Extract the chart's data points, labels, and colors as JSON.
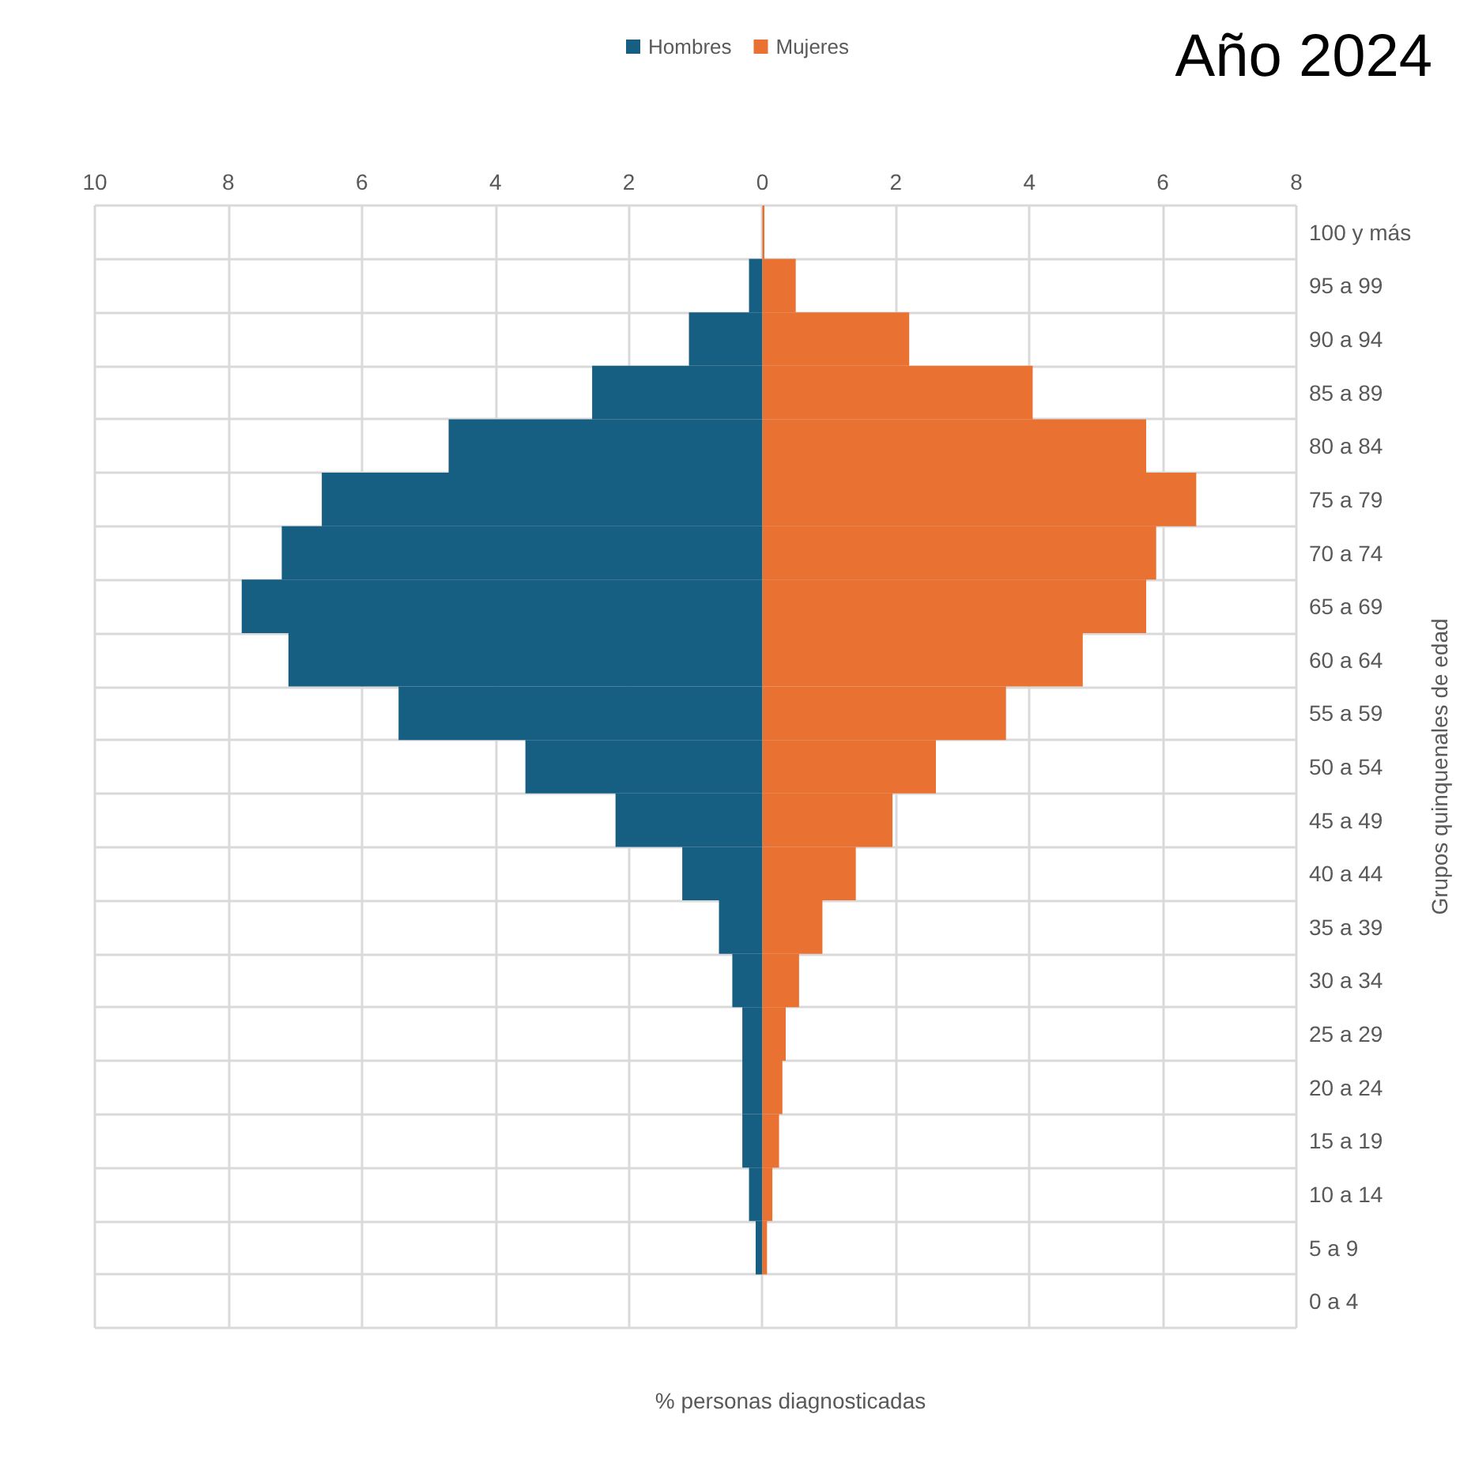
{
  "chart_data": {
    "type": "bar",
    "orientation": "horizontal",
    "title": "Año 2024",
    "xlabel": "% personas diagnosticadas",
    "ylabel": "Grupos quinquenales de edad",
    "categories": [
      "100 y más",
      "95 a 99",
      "90 a 94",
      "85 a 89",
      "80 a 84",
      "75 a 79",
      "70 a 74",
      "65 a 69",
      "60 a 64",
      "55 a 59",
      "50 a 54",
      "45 a 49",
      "40 a 44",
      "35 a 39",
      "30 a 34",
      "25 a 29",
      "20 a 24",
      "15 a 19",
      "10 a 14",
      "5 a 9",
      "0 a 4"
    ],
    "series": [
      {
        "name": "Hombres",
        "color": "#175f82",
        "values": [
          0,
          -0.2,
          -1.1,
          -2.55,
          -4.7,
          -6.6,
          -7.2,
          -7.8,
          -7.1,
          -5.45,
          -3.55,
          -2.2,
          -1.2,
          -0.65,
          -0.45,
          -0.3,
          -0.3,
          -0.3,
          -0.2,
          -0.1,
          0
        ]
      },
      {
        "name": "Mujeres",
        "color": "#e97132",
        "values": [
          0.03,
          0.5,
          2.2,
          4.05,
          5.75,
          6.5,
          5.9,
          5.75,
          4.8,
          3.65,
          2.6,
          1.95,
          1.4,
          0.9,
          0.55,
          0.35,
          0.3,
          0.25,
          0.15,
          0.07,
          0
        ]
      }
    ],
    "xlim": [
      -10,
      8
    ],
    "xticks": [
      {
        "value": -10,
        "label": "10"
      },
      {
        "value": -8,
        "label": "8"
      },
      {
        "value": -6,
        "label": "6"
      },
      {
        "value": -4,
        "label": "4"
      },
      {
        "value": -2,
        "label": "2"
      },
      0,
      2,
      4,
      6,
      8
    ],
    "stacked": true,
    "grid": true,
    "legend": "top"
  }
}
